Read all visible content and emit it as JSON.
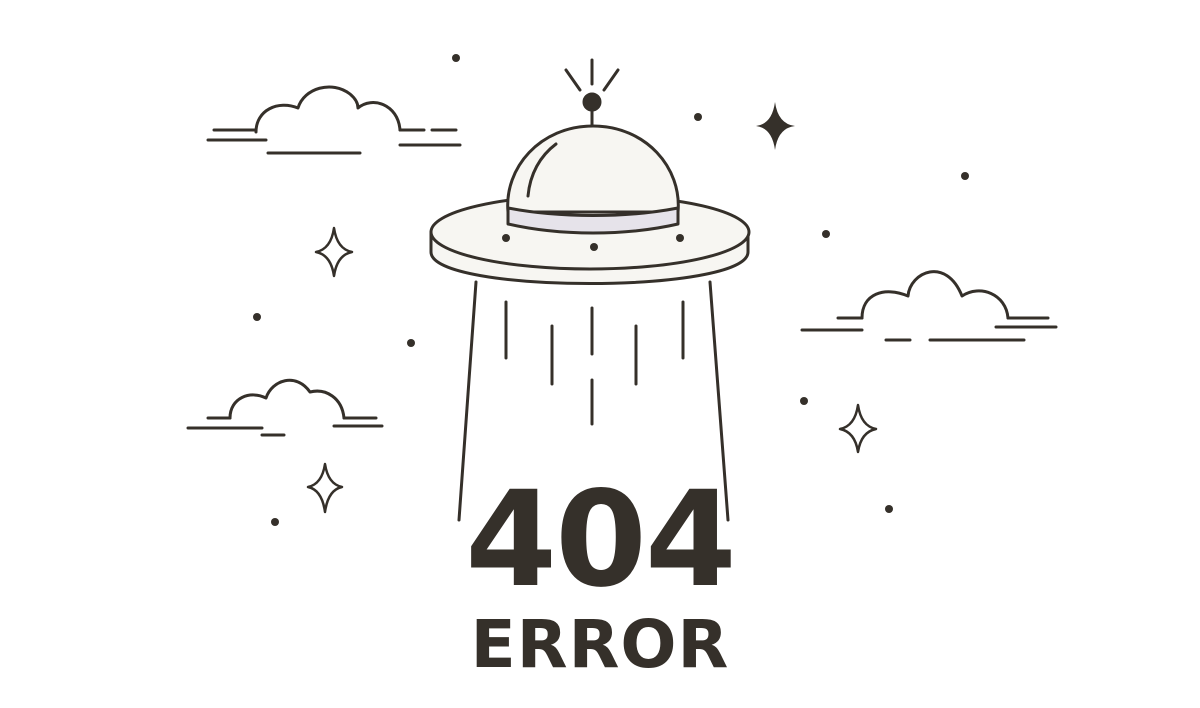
{
  "error": {
    "code": "404",
    "label": "ERROR"
  },
  "colors": {
    "ink": "#35302a",
    "ufo_fill": "#f7f6f2",
    "ufo_band": "#e6e3ea",
    "background": "#ffffff"
  },
  "icons": [
    "ufo-icon",
    "cloud-icon",
    "sparkle-icon",
    "star-dot-icon",
    "light-beam-icon"
  ]
}
